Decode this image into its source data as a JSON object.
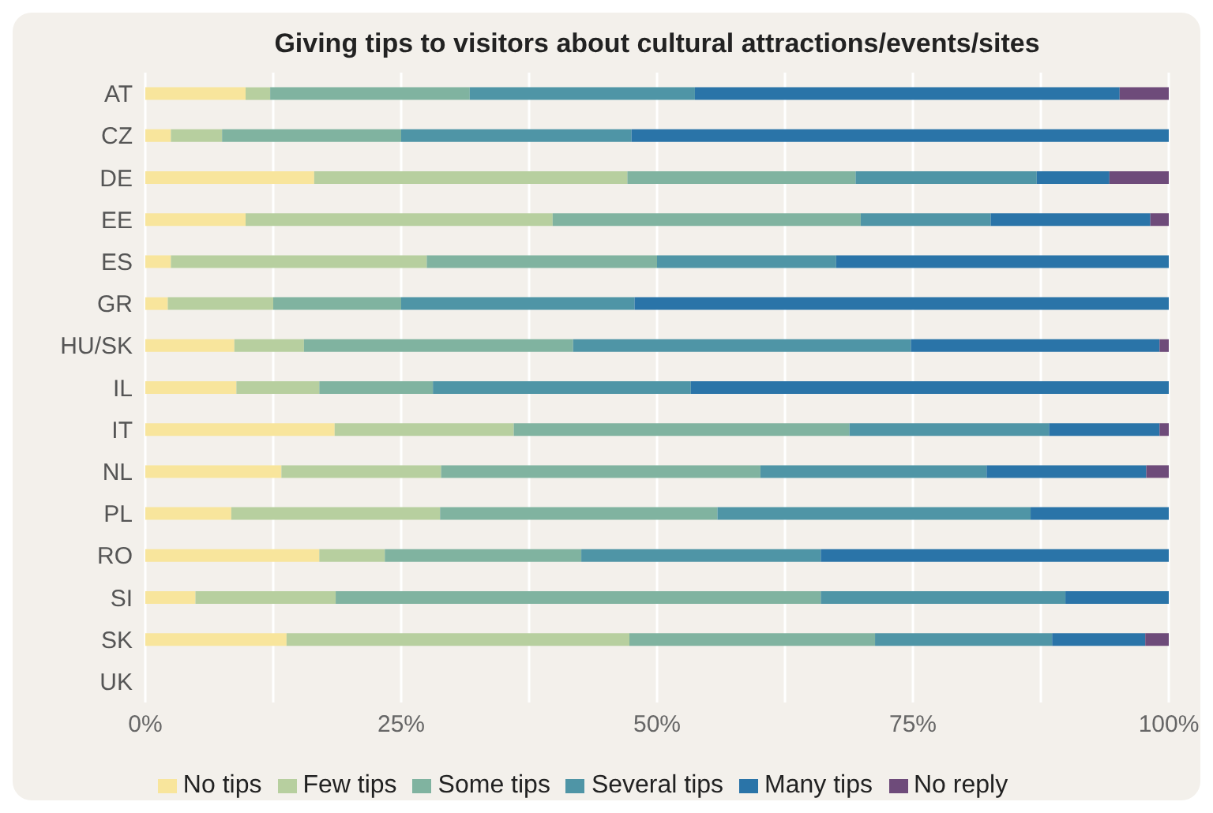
{
  "chart_data": {
    "type": "bar",
    "orientation": "horizontal",
    "stacked": true,
    "title": "Giving tips to visitors about cultural attractions/events/sites",
    "categories": [
      "AT",
      "CZ",
      "DE",
      "EE",
      "ES",
      "GR",
      "HU/SK",
      "IL",
      "IT",
      "NL",
      "PL",
      "RO",
      "SI",
      "SK",
      "UK"
    ],
    "series": [
      {
        "name": "No tips",
        "color": "#f8e59c",
        "values": [
          9.8,
          2.5,
          16.5,
          9.8,
          2.5,
          2.2,
          8.7,
          8.9,
          18.5,
          13.3,
          8.4,
          17.0,
          4.9,
          13.8,
          null
        ]
      },
      {
        "name": "Few tips",
        "color": "#b7cf9f",
        "values": [
          2.4,
          5.0,
          30.6,
          30.0,
          25.0,
          10.3,
          6.8,
          8.1,
          17.5,
          15.6,
          20.4,
          6.4,
          13.7,
          33.5,
          null
        ]
      },
      {
        "name": "Some tips",
        "color": "#80b3a0",
        "values": [
          19.5,
          17.5,
          22.3,
          30.1,
          22.5,
          12.5,
          26.3,
          11.1,
          32.8,
          31.2,
          27.1,
          19.2,
          47.4,
          24.0,
          null
        ]
      },
      {
        "name": "Several tips",
        "color": "#4f95a6",
        "values": [
          22.0,
          22.5,
          17.7,
          12.7,
          17.5,
          22.8,
          33.0,
          25.2,
          19.5,
          22.1,
          30.6,
          23.4,
          23.9,
          17.3,
          null
        ]
      },
      {
        "name": "Many tips",
        "color": "#2a74a8",
        "values": [
          41.5,
          52.5,
          7.1,
          15.6,
          32.5,
          52.2,
          24.3,
          46.7,
          10.8,
          15.6,
          13.5,
          34.0,
          10.1,
          9.1,
          null
        ]
      },
      {
        "name": "No reply",
        "color": "#6e4b7a",
        "values": [
          4.8,
          0,
          5.8,
          1.8,
          0,
          0,
          0.9,
          0,
          0.9,
          2.2,
          0,
          0,
          0,
          2.3,
          null
        ]
      }
    ],
    "xlim": [
      0,
      100
    ],
    "xticks": [
      {
        "value": 0,
        "label": "0%"
      },
      {
        "value": 12.5,
        "label": null
      },
      {
        "value": 25,
        "label": "25%"
      },
      {
        "value": 37.5,
        "label": null
      },
      {
        "value": 50,
        "label": "50%"
      },
      {
        "value": 62.5,
        "label": null
      },
      {
        "value": 75,
        "label": "75%"
      },
      {
        "value": 87.5,
        "label": null
      },
      {
        "value": 100,
        "label": "100%"
      }
    ],
    "grid": "x",
    "legend": "bottom"
  }
}
